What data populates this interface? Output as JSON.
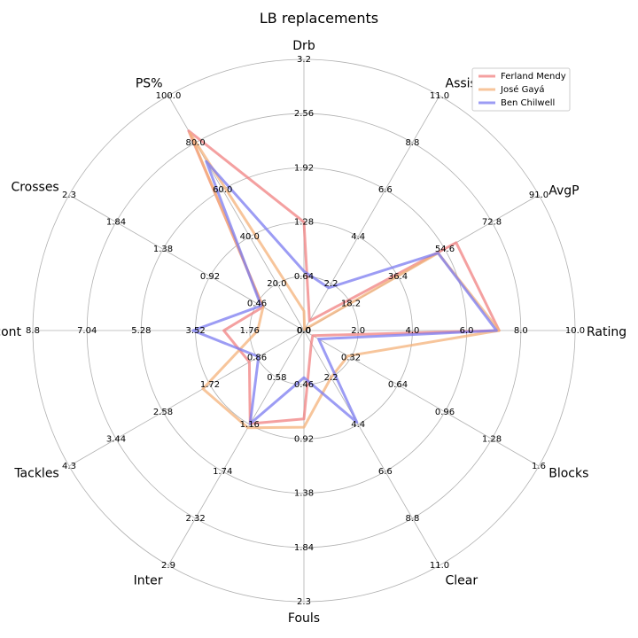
{
  "chart_data": {
    "type": "radar",
    "title": "LB replacements",
    "axes": [
      {
        "name": "Drb",
        "max": 3.2,
        "ticks": [
          "0.0",
          "0.64",
          "1.28",
          "1.92",
          "2.56",
          "3.2"
        ]
      },
      {
        "name": "Assists",
        "max": 11.0,
        "ticks": [
          "0.0",
          "2.2",
          "4.4",
          "6.6",
          "8.8",
          "11.0"
        ]
      },
      {
        "name": "AvgP",
        "max": 91.0,
        "ticks": [
          "0.0",
          "18.2",
          "36.4",
          "54.6",
          "72.8",
          "91.0"
        ]
      },
      {
        "name": "Rating",
        "max": 10.0,
        "ticks": [
          "0.0",
          "2.0",
          "4.0",
          "6.0",
          "8.0",
          "10.0"
        ]
      },
      {
        "name": "Blocks",
        "max": 1.6,
        "ticks": [
          "0.0",
          "0.32",
          "0.64",
          "0.96",
          "1.28",
          "1.6"
        ]
      },
      {
        "name": "Clear",
        "max": 11.0,
        "ticks": [
          "0.0",
          "2.2",
          "4.4",
          "6.6",
          "8.8",
          "11.0"
        ]
      },
      {
        "name": "Fouls",
        "max": 2.3,
        "ticks": [
          "0.0",
          "0.46",
          "0.92",
          "1.38",
          "1.84",
          "2.3"
        ]
      },
      {
        "name": "Inter",
        "max": 2.9,
        "ticks": [
          "0.0",
          "0.58",
          "1.16",
          "1.74",
          "2.32",
          "2.9"
        ]
      },
      {
        "name": "Tackles",
        "max": 4.3,
        "ticks": [
          "0.0",
          "0.86",
          "1.72",
          "2.58",
          "3.44",
          "4.3"
        ]
      },
      {
        "name": "Dispos_cont",
        "max": 8.8,
        "ticks": [
          "0.0",
          "1.76",
          "3.52",
          "5.28",
          "7.04",
          "8.8"
        ]
      },
      {
        "name": "Crosses",
        "max": 2.3,
        "ticks": [
          "0.0",
          "0.46",
          "0.92",
          "1.38",
          "1.84",
          "2.3"
        ]
      },
      {
        "name": "PS%",
        "max": 100.0,
        "ticks": [
          "0.0",
          "20.0",
          "40.0",
          "60.0",
          "80.0",
          "100.0"
        ]
      }
    ],
    "series": [
      {
        "name": "Ferland Mendy",
        "color": "#f08080",
        "values": [
          1.28,
          0.45,
          59.0,
          7.2,
          0.06,
          0.6,
          0.75,
          1.15,
          1.0,
          2.6,
          0.4,
          85.0
        ]
      },
      {
        "name": "José Gayá",
        "color": "#f4b27a",
        "values": [
          0.23,
          0.05,
          52.0,
          7.2,
          0.3,
          2.2,
          0.82,
          1.2,
          1.85,
          1.5,
          0.4,
          84.0
        ]
      },
      {
        "name": "Ben Chilwell",
        "color": "#7b7bf0",
        "values": [
          0.7,
          2.0,
          52.0,
          7.1,
          0.1,
          4.3,
          0.4,
          1.15,
          0.83,
          3.6,
          0.42,
          72.0
        ]
      }
    ],
    "grid": true,
    "legend_position": "top-right",
    "rlim": [
      0,
      1
    ]
  }
}
